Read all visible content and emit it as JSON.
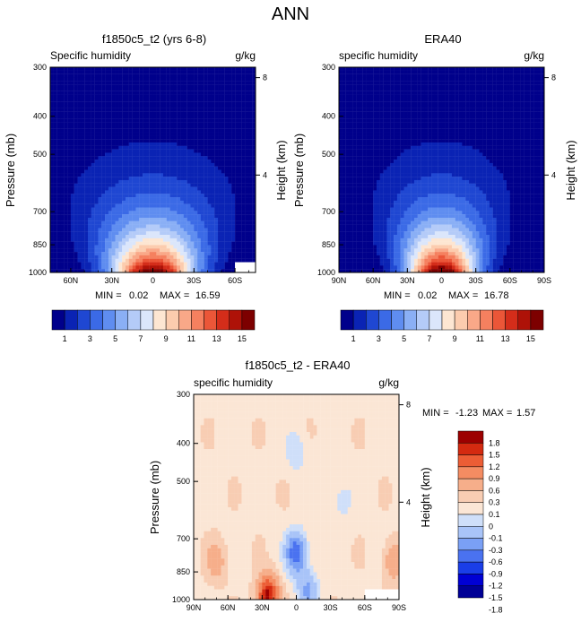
{
  "figure_title": "ANN",
  "colors": {
    "seq": [
      "#00008b",
      "#0a23b4",
      "#1f47d2",
      "#3b6ae6",
      "#5f8df0",
      "#8aaff5",
      "#b4cbf8",
      "#dbe6fb",
      "#fde6d2",
      "#fcccae",
      "#f9a888",
      "#f5805f",
      "#eb5638",
      "#d42d1a",
      "#ae1208",
      "#7d0000"
    ],
    "diff": [
      "#000096",
      "#0000d4",
      "#1a3ee8",
      "#4a72f0",
      "#7aa0f5",
      "#a9c4f8",
      "#cfdff9",
      "#fbe6d5",
      "#f8cdb3",
      "#f6ae8a",
      "#f48c62",
      "#ec5d35",
      "#d42a10",
      "#9c0000"
    ]
  },
  "chart_data": [
    {
      "type": "heatmap",
      "name": "model",
      "title": "f1850c5_t2 (yrs 6-8)",
      "left_label": "Specific humidity",
      "right_label": "g/kg",
      "ylabel": "Pressure (mb)",
      "ylabel_right": "Height (km)",
      "x_ticks": [
        "60N",
        "30N",
        "0",
        "30S",
        "60S"
      ],
      "y_ticks": [
        "300",
        "400",
        "500",
        "700",
        "850",
        "1000"
      ],
      "height_ticks": [
        "8",
        "4"
      ],
      "xlim": [
        -75,
        75
      ],
      "ylim": [
        1000,
        300
      ],
      "min_label": "MIN =",
      "min_value": "0.02",
      "max_label": "MAX =",
      "max_value": "16.59",
      "colorbar_labels": [
        "1",
        "3",
        "5",
        "7",
        "9",
        "11",
        "13",
        "15"
      ],
      "levels": [
        1,
        2,
        3,
        4,
        5,
        6,
        7,
        8,
        9,
        10,
        11,
        12,
        13,
        14,
        15
      ],
      "field": {
        "peak_value": 16.59,
        "peak_lat": 0,
        "masked_region": {
          "lat_from": -60,
          "lat_to": -75,
          "p_from": 940,
          "p_to": 1000
        }
      }
    },
    {
      "type": "heatmap",
      "name": "obs",
      "title": "ERA40",
      "left_label": "specific humidity",
      "right_label": "g/kg",
      "ylabel": "Pressure (mb)",
      "ylabel_right": "Height (km)",
      "x_ticks": [
        "90N",
        "60N",
        "30N",
        "0",
        "30S",
        "60S",
        "90S"
      ],
      "y_ticks": [
        "300",
        "400",
        "500",
        "700",
        "850",
        "1000"
      ],
      "height_ticks": [
        "8",
        "4"
      ],
      "xlim": [
        -90,
        90
      ],
      "ylim": [
        1000,
        300
      ],
      "min_label": "MIN =",
      "min_value": "0.02",
      "max_label": "MAX =",
      "max_value": "16.78",
      "colorbar_labels": [
        "1",
        "3",
        "5",
        "7",
        "9",
        "11",
        "13",
        "15"
      ],
      "levels": [
        1,
        2,
        3,
        4,
        5,
        6,
        7,
        8,
        9,
        10,
        11,
        12,
        13,
        14,
        15
      ],
      "field": {
        "peak_value": 16.78,
        "peak_lat": 0
      }
    },
    {
      "type": "heatmap",
      "name": "diff",
      "title": "f1850c5_t2 - ERA40",
      "left_label": "specific humidity",
      "right_label": "g/kg",
      "ylabel": "Pressure (mb)",
      "ylabel_right": "Height (km)",
      "x_ticks": [
        "90N",
        "60N",
        "30N",
        "0",
        "30S",
        "60S",
        "90S"
      ],
      "y_ticks": [
        "300",
        "400",
        "500",
        "700",
        "850",
        "1000"
      ],
      "height_ticks": [
        "8",
        "4"
      ],
      "xlim": [
        -90,
        90
      ],
      "ylim": [
        1000,
        300
      ],
      "min_label": "MIN =",
      "min_value": "-1.23",
      "max_label": "MAX =",
      "max_value": "1.57",
      "colorbar_labels": [
        "1.8",
        "1.5",
        "1.2",
        "0.9",
        "0.6",
        "0.3",
        "0.1",
        "0",
        "-0.1",
        "-0.3",
        "-0.6",
        "-0.9",
        "-1.2",
        "-1.5",
        "-1.8"
      ],
      "levels": [
        -1.8,
        -1.5,
        -1.2,
        -0.9,
        -0.6,
        -0.3,
        -0.1,
        0.1,
        0.3,
        0.6,
        0.9,
        1.2,
        1.5,
        1.8
      ],
      "field": {
        "background": 0.05,
        "features": [
          {
            "lat": 0,
            "p": 760,
            "amp": -1.23
          },
          {
            "lat": 25,
            "p": 980,
            "amp": 1.57
          },
          {
            "lat": -10,
            "p": 950,
            "amp": -0.7
          },
          {
            "lat": -85,
            "p": 800,
            "amp": 0.5
          },
          {
            "lat": 70,
            "p": 800,
            "amp": 0.4
          },
          {
            "lat": 0,
            "p": 420,
            "amp": -0.3
          },
          {
            "lat": -40,
            "p": 560,
            "amp": -0.25
          }
        ],
        "masked_region": {
          "lat_from": -60,
          "lat_to": -90,
          "p_from": 940,
          "p_to": 1000
        }
      }
    }
  ]
}
